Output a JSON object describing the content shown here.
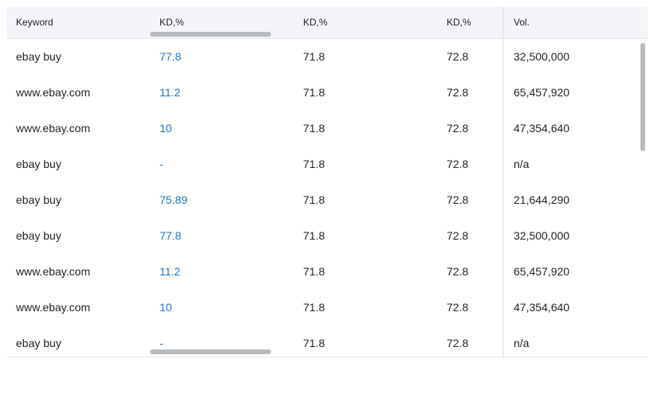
{
  "table": {
    "headers": {
      "keyword": "Keyword",
      "kd1": "KD,%",
      "kd2": "KD,%",
      "kd3": "KD,%",
      "volume": "Vol."
    },
    "rows": [
      {
        "keyword": "ebay buy",
        "kd1": "77.8",
        "kd2": "71.8",
        "kd3": "72.8",
        "volume": "32,500,000"
      },
      {
        "keyword": "www.ebay.com",
        "kd1": "11.2",
        "kd2": "71.8",
        "kd3": "72.8",
        "volume": "65,457,920"
      },
      {
        "keyword": "www.ebay.com",
        "kd1": "10",
        "kd2": "71.8",
        "kd3": "72.8",
        "volume": "47,354,640"
      },
      {
        "keyword": "ebay buy",
        "kd1": "-",
        "kd2": "71.8",
        "kd3": "72.8",
        "volume": "n/a"
      },
      {
        "keyword": "ebay buy",
        "kd1": "75.89",
        "kd2": "71.8",
        "kd3": "72.8",
        "volume": "21,644,290"
      },
      {
        "keyword": "ebay buy",
        "kd1": "77.8",
        "kd2": "71.8",
        "kd3": "72.8",
        "volume": "32,500,000"
      },
      {
        "keyword": "www.ebay.com",
        "kd1": "11.2",
        "kd2": "71.8",
        "kd3": "72.8",
        "volume": "65,457,920"
      },
      {
        "keyword": "www.ebay.com",
        "kd1": "10",
        "kd2": "71.8",
        "kd3": "72.8",
        "volume": "47,354,640"
      },
      {
        "keyword": "ebay buy",
        "kd1": "-",
        "kd2": "71.8",
        "kd3": "72.8",
        "volume": "n/a"
      }
    ]
  },
  "colors": {
    "link": "#1d74c9",
    "text": "#1f2329",
    "header_bg": "#f4f5f9",
    "border": "#e4e6ea",
    "scrollbar": "#b8bbbf"
  }
}
